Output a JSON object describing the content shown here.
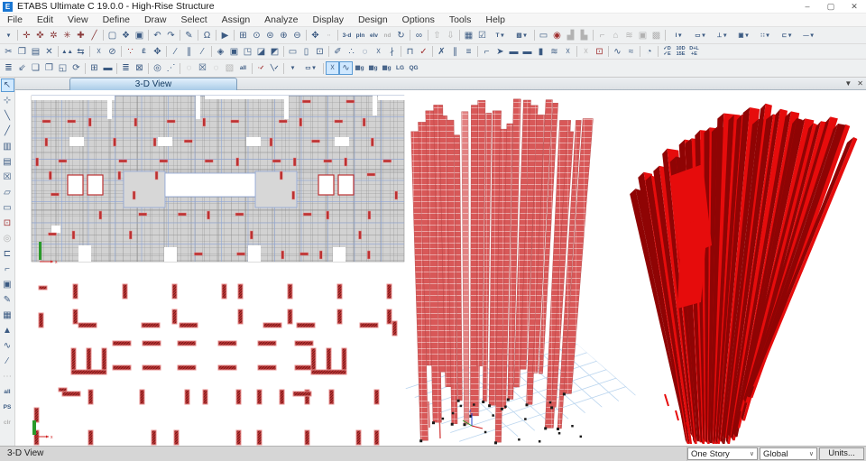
{
  "window": {
    "title": "ETABS Ultimate C 19.0.0 - High-Rise Structure",
    "app_icon_letter": "E",
    "controls": [
      {
        "n": "minimize-button",
        "g": "–"
      },
      {
        "n": "maximize-button",
        "g": "▢"
      },
      {
        "n": "close-button",
        "g": "✕"
      }
    ]
  },
  "menu": {
    "items": [
      "File",
      "Edit",
      "View",
      "Define",
      "Draw",
      "Select",
      "Assign",
      "Analyze",
      "Display",
      "Design",
      "Options",
      "Tools",
      "Help"
    ]
  },
  "toolbars": {
    "row1": [
      {
        "n": "toolbar-options-caret",
        "g": "▾",
        "t": 1
      },
      "|",
      {
        "n": "joint-tool-1-icon",
        "g": "✛",
        "c": "#8a3a3a"
      },
      {
        "n": "joint-tool-2-icon",
        "g": "✜",
        "c": "#8a3a3a"
      },
      {
        "n": "joint-tool-3-icon",
        "g": "✲",
        "c": "#8a3a3a"
      },
      {
        "n": "joint-tool-4-icon",
        "g": "✳",
        "c": "#8a3a3a"
      },
      {
        "n": "joint-tool-5-icon",
        "g": "✚",
        "c": "#8a3a3a"
      },
      {
        "n": "joint-slash-icon",
        "g": "╱",
        "c": "#8a3a3a"
      },
      "|",
      {
        "n": "new-model-icon",
        "g": "▢"
      },
      {
        "n": "open-file-icon",
        "g": "❖"
      },
      {
        "n": "save-model-icon",
        "g": "▣"
      },
      "|",
      {
        "n": "undo-icon",
        "g": "↶"
      },
      {
        "n": "redo-icon",
        "g": "↷"
      },
      "|",
      {
        "n": "edit-pencil-icon",
        "g": "✎"
      },
      "|",
      {
        "n": "lock-model-icon",
        "g": "Ω"
      },
      "|",
      {
        "n": "run-analysis-icon",
        "g": "▶"
      },
      "|",
      {
        "n": "rubber-band-zoom-icon",
        "g": "⊞"
      },
      {
        "n": "restore-full-view-icon",
        "g": "⊙"
      },
      {
        "n": "previous-zoom-icon",
        "g": "⊜"
      },
      {
        "n": "zoom-in-icon",
        "g": "⊕"
      },
      {
        "n": "zoom-out-icon",
        "g": "⊖"
      },
      "|",
      {
        "n": "pan-icon",
        "g": "✥"
      },
      {
        "n": "measure-icon",
        "g": "∙∙",
        "t": 1,
        "d": 1
      },
      "|",
      {
        "n": "3d-view-icon",
        "g": "3-d",
        "t": 1
      },
      {
        "n": "plan-view-icon",
        "g": "pln",
        "t": 1
      },
      {
        "n": "elevation-view-icon",
        "g": "elv",
        "t": 1
      },
      {
        "n": "named-display-icon",
        "g": "nd",
        "t": 1,
        "d": 1
      },
      {
        "n": "rotate-3d-view-icon",
        "g": "↻"
      },
      "|",
      {
        "n": "set-display-options-icon",
        "g": "∞"
      },
      "|",
      {
        "n": "shift-up-icon",
        "g": "⇧",
        "d": 1
      },
      {
        "n": "shift-down-icon",
        "g": "⇩",
        "d": 1
      },
      "|",
      {
        "n": "object-model-icon",
        "g": "▦"
      },
      {
        "n": "check-display-icon",
        "g": "☑"
      },
      {
        "n": "text-display-dropdown-icon",
        "g": "T ▾",
        "t": 1,
        "w": 1
      },
      {
        "n": "extruded-view-dropdown-icon",
        "g": "▧ ▾",
        "t": 1,
        "w": 1
      },
      "|",
      {
        "n": "draw-window-icon",
        "g": "▭"
      },
      {
        "n": "snap-point-icon",
        "g": "◉",
        "c": "#a03030"
      },
      {
        "n": "plot-function-1-icon",
        "g": "▟",
        "d": 1
      },
      {
        "n": "plot-function-2-icon",
        "g": "▙",
        "d": 1
      },
      "|",
      {
        "n": "frame-hinge-icon",
        "g": "⌐",
        "d": 1
      },
      {
        "n": "named-plot-icon",
        "g": "⌂",
        "d": 1
      },
      {
        "n": "story-response-icon",
        "g": "≋",
        "d": 1
      },
      {
        "n": "model-alive-icon",
        "g": "▣",
        "d": 1
      },
      {
        "n": "section-cut-icon",
        "g": "▩",
        "d": 1
      },
      "|",
      {
        "n": "i-section-dropdown-icon",
        "g": "I ▾",
        "t": 1,
        "w": 1
      },
      {
        "n": "rect-section-dropdown-icon",
        "g": "▭ ▾",
        "t": 1,
        "w": 1
      },
      {
        "n": "t-section-dropdown-icon",
        "g": "⊥ ▾",
        "t": 1,
        "w": 1
      },
      {
        "n": "encased-section-dropdown-icon",
        "g": "▣ ▾",
        "t": 1,
        "w": 1
      },
      {
        "n": "rebar-layout-dropdown-icon",
        "g": "∷ ▾",
        "t": 1,
        "w": 1
      },
      {
        "n": "channel-section-dropdown-icon",
        "g": "⊏ ▾",
        "t": 1,
        "w": 1
      },
      {
        "n": "tendon-dropdown-icon",
        "g": "— ▾",
        "t": 1,
        "w": 1
      }
    ],
    "row2": [
      {
        "n": "cut-icon",
        "g": "✂"
      },
      {
        "n": "copy-icon",
        "g": "❒"
      },
      {
        "n": "paste-icon",
        "g": "▤"
      },
      {
        "n": "delete-icon",
        "g": "✕"
      },
      "|",
      {
        "n": "align-objects-icon",
        "g": "▲▲",
        "t": 1
      },
      {
        "n": "dimension-lines-icon",
        "g": "⇆"
      },
      "|",
      {
        "n": "move-joints-icon",
        "g": "☓"
      },
      {
        "n": "null-area-icon",
        "g": "⊘"
      },
      "|",
      {
        "n": "divide-frames-icon",
        "g": "∵",
        "c": "#a03030"
      },
      {
        "n": "edit-frame-icon",
        "g": "Ē",
        "t": 1
      },
      {
        "n": "move-objects-icon",
        "g": "✥"
      },
      "|",
      {
        "n": "divide-1-icon",
        "g": "∕"
      },
      {
        "n": "divide-2-icon",
        "g": "∥"
      },
      {
        "n": "divide-3-icon",
        "g": "⁄"
      },
      "|",
      {
        "n": "merge-areas-icon",
        "g": "◈"
      },
      {
        "n": "expand-shrink-areas-icon",
        "g": "▣"
      },
      {
        "n": "edit-area-icon",
        "g": "◳"
      },
      {
        "n": "extrude-area-1-icon",
        "g": "◪"
      },
      {
        "n": "extrude-area-2-icon",
        "g": "◩"
      },
      "|",
      {
        "n": "frame-object-icon",
        "g": "▭"
      },
      {
        "n": "wall-object-icon",
        "g": "▯"
      },
      {
        "n": "opening-object-icon",
        "g": "⊡"
      },
      "|",
      {
        "n": "draw-grid-icon",
        "g": "✐"
      },
      {
        "n": "merge-joints-icon",
        "g": "∴"
      },
      {
        "n": "lasso-select-icon",
        "g": "◌"
      },
      {
        "n": "trim-frame-icon",
        "g": "☓"
      },
      {
        "n": "extend-frame-icon",
        "g": "∤"
      },
      "|",
      {
        "n": "join-frames-icon",
        "g": "⊓"
      },
      {
        "n": "snap-check-icon",
        "g": "✓",
        "c": "#a03030"
      },
      "|",
      {
        "n": "mirror-x-icon",
        "g": "✗"
      },
      {
        "n": "mirror-y-icon",
        "g": "∥"
      },
      {
        "n": "replicate-icon",
        "g": "≡"
      },
      "|",
      {
        "n": "edit-story-icon",
        "g": "⌐"
      },
      {
        "n": "ref-plane-icon",
        "g": "➤"
      },
      {
        "n": "slab-1-icon",
        "g": "▬"
      },
      {
        "n": "slab-2-icon",
        "g": "▬"
      },
      {
        "n": "wall-stack-icon",
        "g": "▮"
      },
      {
        "n": "hatch-lines-icon",
        "g": "≋"
      },
      {
        "n": "clear-x-icon",
        "g": "☓"
      },
      "|",
      {
        "n": "xz-plane-icon",
        "g": "☓",
        "d": 1
      },
      {
        "n": "center-target-icon",
        "g": "⊡",
        "c": "#a03030"
      },
      "|",
      {
        "n": "pushover-curve-icon",
        "g": "∿"
      },
      {
        "n": "response-spectrum-icon",
        "g": "≈"
      },
      "|",
      {
        "n": "sphere-query-icon",
        "g": "◔"
      },
      "|",
      {
        "n": "combo-check-de-icon",
        "g": "✓D\n✓E",
        "t": 2
      },
      {
        "n": "combo-10d-15e-icon",
        "g": "10D\n15E",
        "t": 2
      },
      {
        "n": "combo-dl-e-icon",
        "g": "D+L\n+E",
        "t": 2
      }
    ],
    "row3": [
      {
        "n": "print-graphics-icon",
        "g": "≣"
      },
      {
        "n": "sweep-clean-icon",
        "g": "⇙"
      },
      {
        "n": "new-window-icon",
        "g": "❏"
      },
      {
        "n": "duplicate-window-icon",
        "g": "❐"
      },
      {
        "n": "capture-picture-icon",
        "g": "◱"
      },
      {
        "n": "refresh-window-icon",
        "g": "⟳"
      },
      "|",
      {
        "n": "interactive-database-icon",
        "g": "⊞"
      },
      {
        "n": "deck-section-icon",
        "g": "▬"
      },
      "|",
      {
        "n": "print-tables-icon",
        "g": "≣"
      },
      {
        "n": "eraser-icon",
        "g": "⊠"
      },
      "|",
      {
        "n": "select-zoom-icon",
        "g": "◎"
      },
      {
        "n": "select-graph-icon",
        "g": "⋰"
      },
      "|",
      {
        "n": "select-previous-icon",
        "g": "◌",
        "d": 1
      },
      {
        "n": "select-by-x-icon",
        "g": "☒"
      },
      {
        "n": "deselect-icon",
        "g": "◌",
        "d": 1
      },
      {
        "n": "select-all-box-icon",
        "g": "▧",
        "d": 1
      },
      {
        "n": "select-all-label-icon",
        "g": "all",
        "t": 1
      },
      "|",
      {
        "n": "snap-to-point-icon",
        "g": "∙✓",
        "t": 1,
        "c": "#a03030"
      },
      {
        "n": "snap-to-line-icon",
        "g": "╲✓",
        "t": 1
      },
      "|",
      {
        "n": "draw-dropdown-caret",
        "g": "▾",
        "t": 1
      },
      {
        "n": "rect-draw-dropdown-icon",
        "g": "▭ ▾",
        "t": 1,
        "w": 1
      },
      "|",
      {
        "n": "snap-intersections-icon",
        "g": "☓",
        "s": 1
      },
      {
        "n": "snap-lines-edges-icon",
        "g": "∿",
        "s": 1
      },
      {
        "n": "wind-load-1-icon",
        "g": "▦g",
        "t": 1
      },
      {
        "n": "wind-load-2-icon",
        "g": "▦g",
        "t": 1
      },
      {
        "n": "wind-load-3-icon",
        "g": "▦g",
        "t": 1
      },
      {
        "n": "lg-loads-icon",
        "g": "LG",
        "t": 1
      },
      {
        "n": "qg-loads-icon",
        "g": "QG",
        "t": 1
      }
    ]
  },
  "left_toolbar": [
    {
      "n": "select-pointer-icon",
      "g": "↖",
      "s": 1
    },
    {
      "n": "reshape-object-icon",
      "g": "⊹"
    },
    {
      "n": "draw-frame-icon",
      "g": "╲"
    },
    {
      "n": "quick-draw-frame-icon",
      "g": "╱"
    },
    {
      "n": "quick-draw-beams-icon",
      "g": "▥"
    },
    {
      "n": "quick-draw-secondary-beams-icon",
      "g": "▤"
    },
    {
      "n": "quick-draw-braces-icon",
      "g": "☒"
    },
    {
      "n": "draw-floor-icon",
      "g": "▱"
    },
    {
      "n": "draw-rect-floor-icon",
      "g": "▭"
    },
    {
      "n": "quick-draw-floor-icon",
      "g": "⊡",
      "c": "#a03030"
    },
    {
      "n": "draw-circle-icon",
      "g": "◎",
      "d": 1
    },
    {
      "n": "draw-wall-icon",
      "g": "⊏"
    },
    {
      "n": "quick-draw-wall-icon",
      "g": "⌐"
    },
    {
      "n": "draw-door-icon",
      "g": "▣"
    },
    {
      "n": "draw-link-icon",
      "g": "✎"
    },
    {
      "n": "edit-grid-icon",
      "g": "▦"
    },
    {
      "n": "draw-tower-icon",
      "g": "▲"
    },
    {
      "n": "draw-curve-icon",
      "g": "∿"
    },
    {
      "n": "draw-ramp-icon",
      "g": "∕"
    },
    {
      "n": "guide-dashes-icon",
      "g": "⋯",
      "d": 1
    },
    {
      "n": "show-all-icon",
      "g": "all",
      "t": 1
    },
    {
      "n": "ps-icon",
      "g": "PS",
      "t": 1
    },
    {
      "n": "clr-icon",
      "g": "clr",
      "t": 1,
      "d": 1
    }
  ],
  "tab_bar": {
    "active_tab": "3-D View",
    "controls": [
      {
        "n": "view-menu-caret",
        "g": "▼"
      },
      {
        "n": "close-view-button",
        "g": "✕"
      }
    ]
  },
  "statusbar": {
    "left_label": "3-D View",
    "story_dropdown": "One Story",
    "coord_dropdown": "Global",
    "units_button": "Units..."
  },
  "colors": {
    "accent_blue": "#1976d2",
    "icon_blue": "#3b5a82",
    "mesh_fill": "#d2d2d2",
    "mesh_line": "#a0a0a0",
    "mesh_dark": "#6e6e6e",
    "grid_blue": "#8fa6d6",
    "wall_red": "#bb3131",
    "wall_red_light": "#e89090",
    "wall_hatch_dark": "#6e1818",
    "bldg_red": "#d85858",
    "bldg_edge": "#b04040",
    "solid_red": "#e60c0c",
    "solid_dark_red": "#8f0404",
    "base_grid_blue": "#bcd6ef",
    "axis_green": "#2a9a2a",
    "axis_red": "#d02020",
    "axis_blue": "#2040d0"
  }
}
